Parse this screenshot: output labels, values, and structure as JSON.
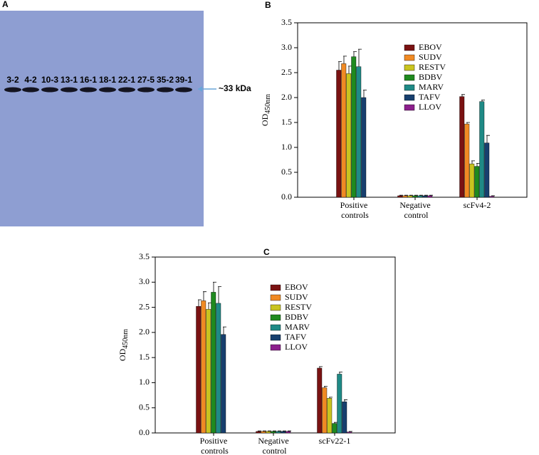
{
  "blot": {
    "panel": "A",
    "lanes": [
      "3-2",
      "4-2",
      "10-3",
      "13-1",
      "16-1",
      "18-1",
      "22-1",
      "27-5",
      "35-2",
      "39-1"
    ],
    "marker": "~33 kDa"
  },
  "chart_data": [
    {
      "type": "bar",
      "panel": "B",
      "ylabel": "OD",
      "ylabel_sub": "450nm",
      "categories": [
        "Positive controls",
        "Negative control",
        "scFv4-2"
      ],
      "ylim": [
        0,
        3.5
      ],
      "yticks": [
        {
          "value": 0,
          "label": "0.0"
        },
        {
          "value": 0.5,
          "label": "0.5"
        },
        {
          "value": 1,
          "label": "1.0"
        },
        {
          "value": 1.5,
          "label": "1.5"
        },
        {
          "value": 2,
          "label": "2.0"
        },
        {
          "value": 2.5,
          "label": "2.5"
        },
        {
          "value": 3,
          "label": "3.0"
        },
        {
          "value": 3.5,
          "label": "3.5"
        }
      ],
      "series": [
        {
          "name": "EBOV",
          "color": "#7a1212",
          "values": [
            2.55,
            0.03,
            2.02
          ],
          "errors": [
            0.17,
            0.01,
            0.04
          ]
        },
        {
          "name": "SUDV",
          "color": "#f08a24",
          "values": [
            2.68,
            0.03,
            1.47
          ],
          "errors": [
            0.15,
            0.01,
            0.03
          ]
        },
        {
          "name": "RESTV",
          "color": "#c9c41f",
          "values": [
            2.48,
            0.03,
            0.67
          ],
          "errors": [
            0.15,
            0.01,
            0.06
          ]
        },
        {
          "name": "BDBV",
          "color": "#1f8a1f",
          "values": [
            2.82,
            0.03,
            0.62
          ],
          "errors": [
            0.1,
            0.01,
            0.06
          ]
        },
        {
          "name": "MARV",
          "color": "#1f8a86",
          "values": [
            2.62,
            0.03,
            1.92
          ],
          "errors": [
            0.35,
            0.01,
            0.03
          ]
        },
        {
          "name": "TAFV",
          "color": "#173f6e",
          "values": [
            2.0,
            0.03,
            1.09
          ],
          "errors": [
            0.15,
            0.01,
            0.15
          ]
        },
        {
          "name": "LLOV",
          "color": "#8c1f8c",
          "values": [
            null,
            0.03,
            0.02
          ],
          "errors": [
            null,
            0.01,
            0.01
          ]
        }
      ]
    },
    {
      "type": "bar",
      "panel": "C",
      "ylabel": "OD",
      "ylabel_sub": "450nm",
      "categories": [
        "Positive controls",
        "Negative control",
        "scFv22-1"
      ],
      "ylim": [
        0,
        3.5
      ],
      "yticks": [
        {
          "value": 0,
          "label": "0.0"
        },
        {
          "value": 0.5,
          "label": "0.5"
        },
        {
          "value": 1,
          "label": "1.0"
        },
        {
          "value": 1.5,
          "label": "1.5"
        },
        {
          "value": 2,
          "label": "2.0"
        },
        {
          "value": 2.5,
          "label": "2.5"
        },
        {
          "value": 3,
          "label": "3.0"
        },
        {
          "value": 3.5,
          "label": "3.5"
        }
      ],
      "series": [
        {
          "name": "EBOV",
          "color": "#7a1212",
          "values": [
            2.52,
            0.03,
            1.29
          ],
          "errors": [
            0.13,
            0.01,
            0.03
          ]
        },
        {
          "name": "SUDV",
          "color": "#f08a24",
          "values": [
            2.63,
            0.03,
            0.9
          ],
          "errors": [
            0.18,
            0.01,
            0.03
          ]
        },
        {
          "name": "RESTV",
          "color": "#c9c41f",
          "values": [
            2.46,
            0.03,
            0.69
          ],
          "errors": [
            0.13,
            0.01,
            0.02
          ]
        },
        {
          "name": "BDBV",
          "color": "#1f8a1f",
          "values": [
            2.8,
            0.03,
            0.19
          ],
          "errors": [
            0.2,
            0.01,
            0.02
          ]
        },
        {
          "name": "MARV",
          "color": "#1f8a86",
          "values": [
            2.58,
            0.03,
            1.17
          ],
          "errors": [
            0.33,
            0.01,
            0.04
          ]
        },
        {
          "name": "TAFV",
          "color": "#173f6e",
          "values": [
            1.96,
            0.03,
            0.62
          ],
          "errors": [
            0.15,
            0.01,
            0.04
          ]
        },
        {
          "name": "LLOV",
          "color": "#8c1f8c",
          "values": [
            null,
            0.03,
            0.02
          ],
          "errors": [
            null,
            0.01,
            0.01
          ]
        }
      ]
    }
  ]
}
